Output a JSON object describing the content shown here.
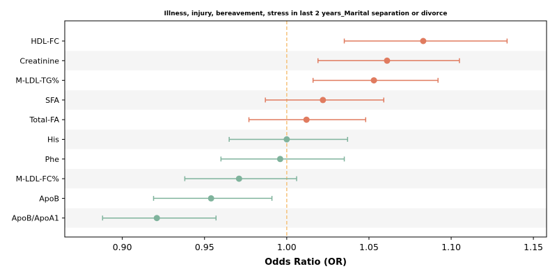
{
  "chart_data": {
    "type": "scatter",
    "subtype": "forest-plot",
    "title": "Illness, injury, bereavement, stress in last 2 years_Marital separation or divorce",
    "xlabel": "Odds Ratio (OR)",
    "ylabel": "",
    "xlim": [
      0.865,
      1.158
    ],
    "xticks": [
      0.9,
      0.95,
      1.0,
      1.05,
      1.1,
      1.15
    ],
    "xtick_labels": [
      "0.90",
      "0.95",
      "1.00",
      "1.05",
      "1.10",
      "1.15"
    ],
    "reference_line": 1.0,
    "grid": false,
    "alternating_row_bands": true,
    "colors": {
      "risk": "#e07b5f",
      "protective": "#7fb39c",
      "reference": "#f5c27a",
      "band": "#f5f5f5"
    },
    "rows": [
      {
        "label": "HDL-FC",
        "or": 1.083,
        "lower": 1.035,
        "upper": 1.134,
        "group": "risk"
      },
      {
        "label": "Creatinine",
        "or": 1.061,
        "lower": 1.019,
        "upper": 1.105,
        "group": "risk"
      },
      {
        "label": "M-LDL-TG%",
        "or": 1.053,
        "lower": 1.016,
        "upper": 1.092,
        "group": "risk"
      },
      {
        "label": "SFA",
        "or": 1.022,
        "lower": 0.987,
        "upper": 1.059,
        "group": "risk"
      },
      {
        "label": "Total-FA",
        "or": 1.012,
        "lower": 0.977,
        "upper": 1.048,
        "group": "risk"
      },
      {
        "label": "His",
        "or": 1.0,
        "lower": 0.965,
        "upper": 1.037,
        "group": "protective"
      },
      {
        "label": "Phe",
        "or": 0.996,
        "lower": 0.96,
        "upper": 1.035,
        "group": "protective"
      },
      {
        "label": "M-LDL-FC%",
        "or": 0.971,
        "lower": 0.938,
        "upper": 1.006,
        "group": "protective"
      },
      {
        "label": "ApoB",
        "or": 0.954,
        "lower": 0.919,
        "upper": 0.991,
        "group": "protective"
      },
      {
        "label": "ApoB/ApoA1",
        "or": 0.921,
        "lower": 0.888,
        "upper": 0.957,
        "group": "protective"
      }
    ]
  }
}
